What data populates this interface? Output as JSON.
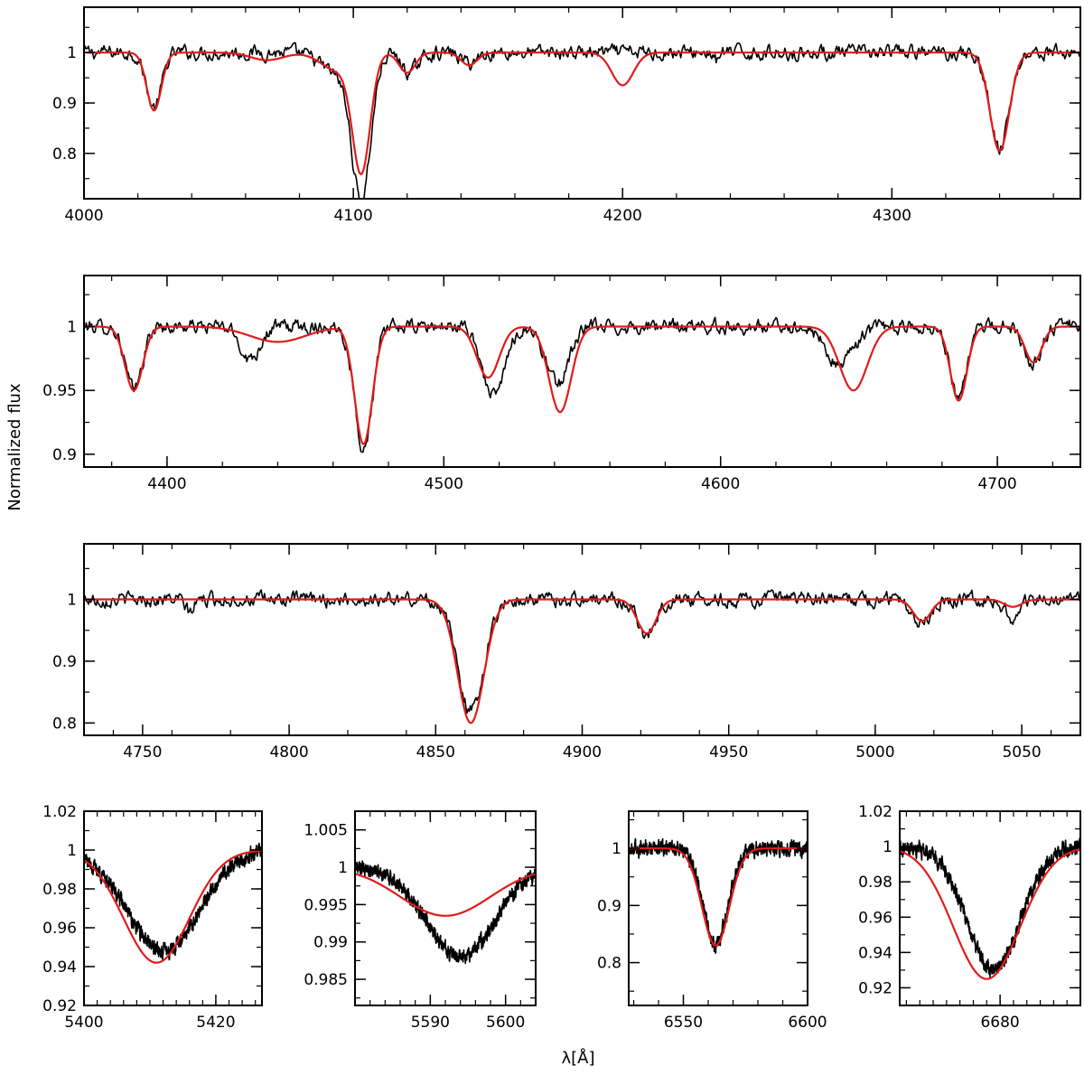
{
  "figure": {
    "ylabel": "Normalized flux",
    "xlabel": "λ[Å]",
    "colors": {
      "observed": "#000000",
      "model": "#e01b1b"
    }
  },
  "chart_data": [
    {
      "type": "line",
      "xlim": [
        4000,
        4370
      ],
      "ylim": [
        0.71,
        1.09
      ],
      "xticks": [
        4000,
        4100,
        4200,
        4300
      ],
      "yticks": [
        0.8,
        0.9,
        1
      ],
      "continuum": 1.0,
      "series": [
        {
          "role": "observed",
          "lines": [
            {
              "center": 4026,
              "depth": 0.11,
              "width": 2.8
            },
            {
              "center": 4103,
              "depth": 0.28,
              "width": 3.5
            },
            {
              "center": 4094,
              "depth": 0.04,
              "width": 6
            },
            {
              "center": 4121,
              "depth": 0.04,
              "width": 3
            },
            {
              "center": 4143,
              "depth": 0.02,
              "width": 3
            },
            {
              "center": 4340,
              "depth": 0.19,
              "width": 3.6
            },
            {
              "center": 4235,
              "depth": 0.02,
              "width": 0.8
            }
          ]
        },
        {
          "role": "model",
          "lines": [
            {
              "center": 4026,
              "depth": 0.115,
              "width": 2.7
            },
            {
              "center": 4103,
              "depth": 0.23,
              "width": 3.3
            },
            {
              "center": 4094,
              "depth": 0.035,
              "width": 6
            },
            {
              "center": 4120,
              "depth": 0.04,
              "width": 3
            },
            {
              "center": 4143,
              "depth": 0.025,
              "width": 3
            },
            {
              "center": 4200,
              "depth": 0.065,
              "width": 4
            },
            {
              "center": 4340,
              "depth": 0.195,
              "width": 3.6
            },
            {
              "center": 4068,
              "depth": 0.015,
              "width": 6
            }
          ]
        }
      ]
    },
    {
      "type": "line",
      "xlim": [
        4370,
        4730
      ],
      "ylim": [
        0.89,
        1.04
      ],
      "xticks": [
        4400,
        4500,
        4600,
        4700
      ],
      "yticks": [
        0.9,
        0.95,
        1
      ],
      "continuum": 1.0,
      "series": [
        {
          "role": "observed",
          "lines": [
            {
              "center": 4388,
              "depth": 0.05,
              "width": 3.0
            },
            {
              "center": 4471,
              "depth": 0.095,
              "width": 3.2
            },
            {
              "center": 4430,
              "depth": 0.025,
              "width": 3.5
            },
            {
              "center": 4518,
              "depth": 0.055,
              "width": 4
            },
            {
              "center": 4541,
              "depth": 0.045,
              "width": 4
            },
            {
              "center": 4643,
              "depth": 0.03,
              "width": 5
            },
            {
              "center": 4686,
              "depth": 0.055,
              "width": 3
            },
            {
              "center": 4713,
              "depth": 0.028,
              "width": 3
            }
          ]
        },
        {
          "role": "model",
          "lines": [
            {
              "center": 4388,
              "depth": 0.05,
              "width": 3.2
            },
            {
              "center": 4471,
              "depth": 0.092,
              "width": 3.2
            },
            {
              "center": 4440,
              "depth": 0.012,
              "width": 10
            },
            {
              "center": 4516,
              "depth": 0.04,
              "width": 4
            },
            {
              "center": 4542,
              "depth": 0.067,
              "width": 4
            },
            {
              "center": 4648,
              "depth": 0.05,
              "width": 5
            },
            {
              "center": 4686,
              "depth": 0.058,
              "width": 3
            },
            {
              "center": 4713,
              "depth": 0.028,
              "width": 3
            }
          ]
        }
      ]
    },
    {
      "type": "line",
      "xlim": [
        4730,
        5070
      ],
      "ylim": [
        0.78,
        1.09
      ],
      "xticks": [
        4750,
        4800,
        4850,
        4900,
        4950,
        5000,
        5050
      ],
      "yticks": [
        0.8,
        0.9,
        1
      ],
      "continuum": 1.0,
      "series": [
        {
          "role": "observed",
          "lines": [
            {
              "center": 4862,
              "depth": 0.18,
              "width": 4.5
            },
            {
              "center": 4922,
              "depth": 0.055,
              "width": 3.2
            },
            {
              "center": 4766,
              "depth": 0.02,
              "width": 1.5
            },
            {
              "center": 5016,
              "depth": 0.035,
              "width": 3
            },
            {
              "center": 5047,
              "depth": 0.03,
              "width": 2.5
            }
          ]
        },
        {
          "role": "model",
          "lines": [
            {
              "center": 4862,
              "depth": 0.2,
              "width": 4.5
            },
            {
              "center": 4922,
              "depth": 0.055,
              "width": 3.2
            },
            {
              "center": 5016,
              "depth": 0.035,
              "width": 3
            },
            {
              "center": 5047,
              "depth": 0.012,
              "width": 3
            }
          ]
        }
      ]
    },
    {
      "type": "line",
      "xlim": [
        5400,
        5427
      ],
      "ylim": [
        0.92,
        1.02
      ],
      "xticks": [
        5400,
        5420
      ],
      "yticks": [
        0.92,
        0.94,
        0.96,
        0.98,
        1,
        1.02
      ],
      "continuum": 1.0,
      "series": [
        {
          "role": "observed",
          "lines": [
            {
              "center": 5412,
              "depth": 0.052,
              "width": 5.5
            }
          ]
        },
        {
          "role": "model",
          "lines": [
            {
              "center": 5411,
              "depth": 0.058,
              "width": 5.0
            }
          ]
        }
      ]
    },
    {
      "type": "line",
      "xlim": [
        5580,
        5604
      ],
      "ylim": [
        0.9815,
        1.0075
      ],
      "xticks": [
        5590,
        5600
      ],
      "yticks": [
        0.985,
        0.99,
        0.995,
        1,
        1.005
      ],
      "continuum": 1.0,
      "series": [
        {
          "role": "observed",
          "lines": [
            {
              "center": 5594,
              "depth": 0.012,
              "width": 4.5
            }
          ]
        },
        {
          "role": "model",
          "lines": [
            {
              "center": 5592,
              "depth": 0.0065,
              "width": 6
            }
          ]
        }
      ]
    },
    {
      "type": "line",
      "xlim": [
        6528,
        6600
      ],
      "ylim": [
        0.725,
        1.065
      ],
      "xticks": [
        6550,
        6600
      ],
      "yticks": [
        0.8,
        0.9,
        1
      ],
      "continuum": 1.0,
      "series": [
        {
          "role": "observed",
          "lines": [
            {
              "center": 6563,
              "depth": 0.17,
              "width": 5
            }
          ]
        },
        {
          "role": "model",
          "lines": [
            {
              "center": 6563,
              "depth": 0.17,
              "width": 5.5
            }
          ]
        }
      ]
    },
    {
      "type": "line",
      "xlim": [
        6665,
        6692
      ],
      "ylim": [
        0.91,
        1.02
      ],
      "xticks": [
        6680
      ],
      "yticks": [
        0.92,
        0.94,
        0.96,
        0.98,
        1,
        1.02
      ],
      "continuum": 1.0,
      "series": [
        {
          "role": "observed",
          "lines": [
            {
              "center": 6679,
              "depth": 0.07,
              "width": 4
            }
          ]
        },
        {
          "role": "model",
          "lines": [
            {
              "center": 6678,
              "depth": 0.075,
              "width": 5
            }
          ]
        }
      ]
    }
  ]
}
